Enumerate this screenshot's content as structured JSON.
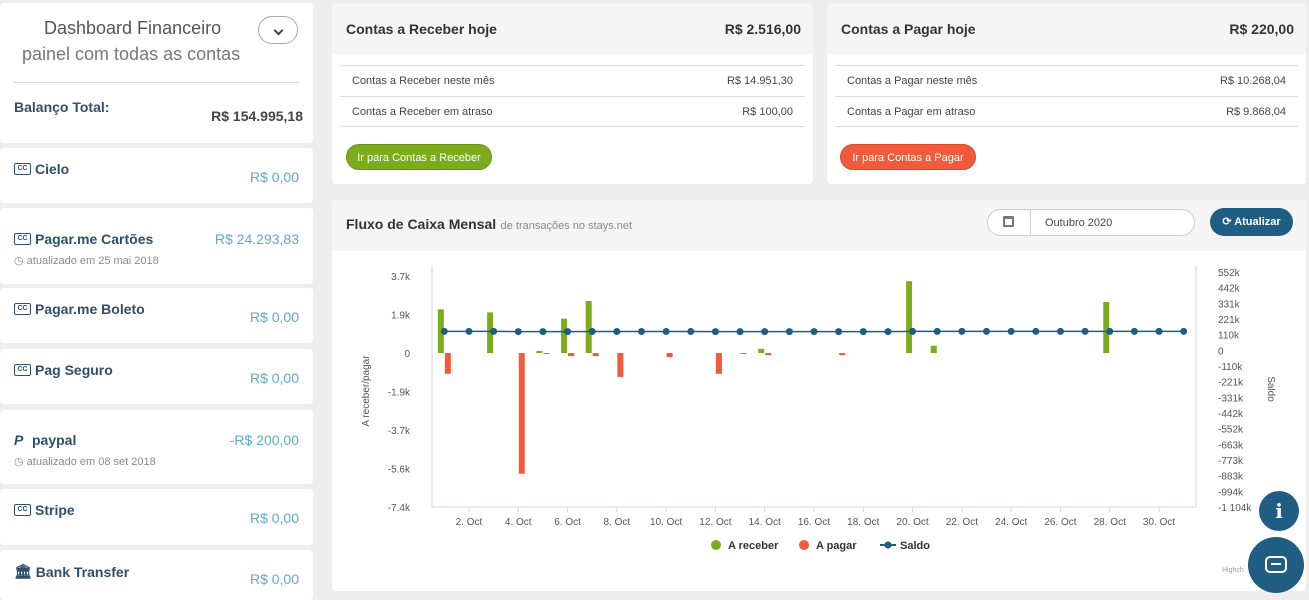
{
  "sidebar": {
    "title": "Dashboard Financeiro",
    "subtitle": "painel com todas as contas",
    "balance_label": "Balanço Total:",
    "balance_value": "R$ 154.995,18",
    "accounts": [
      {
        "icon": "credit-card-icon",
        "name": "Cielo",
        "value": "R$ 0,00",
        "sub": ""
      },
      {
        "icon": "credit-card-icon",
        "name": "Pagar.me Cartões",
        "value": "R$ 24.293,83",
        "sub": "atualizado em 25 mai 2018"
      },
      {
        "icon": "credit-card-icon",
        "name": "Pagar.me Boleto",
        "value": "R$ 0,00",
        "sub": ""
      },
      {
        "icon": "credit-card-icon",
        "name": "Pag Seguro",
        "value": "R$ 0,00",
        "sub": ""
      },
      {
        "icon": "paypal-icon",
        "name": "paypal",
        "value": "-R$ 200,00",
        "sub": "atualizado em 08 set 2018"
      },
      {
        "icon": "credit-card-icon",
        "name": "Stripe",
        "value": "R$ 0,00",
        "sub": ""
      },
      {
        "icon": "bank-icon",
        "name": "Bank Transfer",
        "value": "R$ 0,00",
        "sub": ""
      }
    ]
  },
  "receivable": {
    "title": "Contas a Receber hoje",
    "amount": "R$ 2.516,00",
    "rows": [
      {
        "label": "Contas a Receber neste mês",
        "value": "R$ 14.951,30"
      },
      {
        "label": "Contas a Receber em atraso",
        "value": "R$ 100,00"
      }
    ],
    "button": "Ir para Contas a Receber"
  },
  "payable": {
    "title": "Contas a Pagar hoje",
    "amount": "R$ 220,00",
    "rows": [
      {
        "label": "Contas a Pagar neste mês",
        "value": "R$ 10.268,04"
      },
      {
        "label": "Contas a Pagar em atraso",
        "value": "R$ 9.868,04"
      }
    ],
    "button": "Ir para Contas a Pagar"
  },
  "cashflow": {
    "title": "Fluxo de Caixa Mensal",
    "subtitle": "de transações no stays.net",
    "month": "Outubro 2020",
    "refresh_label": "Atualizar",
    "credit": "Highch"
  },
  "colors": {
    "receive": "#7cac1c",
    "pay": "#f15a3a",
    "saldo": "#1f5e82",
    "accent": "#5fa8c9",
    "primary": "#1f5e82"
  },
  "chart_data": {
    "type": "bar",
    "title": "",
    "xlabel": "",
    "ylabel": "A receber/pagar",
    "y2label": "Saldo",
    "x_ticks": [
      "2. Oct",
      "4. Oct",
      "6. Oct",
      "8. Oct",
      "10. Oct",
      "12. Oct",
      "14. Oct",
      "16. Oct",
      "18. Oct",
      "20. Oct",
      "22. Oct",
      "24. Oct",
      "26. Oct",
      "28. Oct",
      "30. Oct"
    ],
    "y_ticks": [
      "3.7k",
      "1.9k",
      "0",
      "-1.9k",
      "-3.7k",
      "-5.6k",
      "-7.4k"
    ],
    "ylim": [
      -7400,
      3700
    ],
    "y2_ticks": [
      "552k",
      "442k",
      "331k",
      "221k",
      "110k",
      "0",
      "-110k",
      "-221k",
      "-331k",
      "-442k",
      "-552k",
      "-663k",
      "-773k",
      "-883k",
      "-994k",
      "-1 104k"
    ],
    "y2lim": [
      -1104000,
      552000
    ],
    "days": [
      1,
      2,
      3,
      4,
      5,
      6,
      7,
      8,
      9,
      10,
      11,
      12,
      13,
      14,
      15,
      16,
      17,
      18,
      19,
      20,
      21,
      22,
      23,
      24,
      25,
      26,
      27,
      28,
      29,
      30,
      31
    ],
    "series": [
      {
        "name": "A receber",
        "type": "column",
        "values": [
          2100,
          0,
          1950,
          0,
          100,
          1650,
          2500,
          0,
          0,
          0,
          0,
          0,
          0,
          200,
          0,
          0,
          0,
          0,
          0,
          3450,
          350,
          0,
          0,
          0,
          0,
          0,
          0,
          2450,
          0,
          0,
          0
        ]
      },
      {
        "name": "A pagar",
        "type": "column",
        "values": [
          -1000,
          0,
          0,
          -5800,
          -50,
          -150,
          -150,
          -1150,
          0,
          -200,
          0,
          -1000,
          -50,
          -100,
          0,
          0,
          -100,
          0,
          0,
          0,
          0,
          0,
          0,
          0,
          0,
          0,
          0,
          0,
          0,
          0,
          0
        ]
      },
      {
        "name": "Saldo",
        "type": "line",
        "values": [
          155000,
          155000,
          155000,
          153000,
          153000,
          153000,
          154000,
          154000,
          154000,
          154000,
          154000,
          153000,
          153000,
          153000,
          153000,
          153000,
          153000,
          153000,
          153000,
          155000,
          155000,
          155000,
          155000,
          155000,
          155000,
          155000,
          155000,
          155000,
          155000,
          155000,
          155000
        ]
      }
    ],
    "legend_position": "bottom"
  }
}
